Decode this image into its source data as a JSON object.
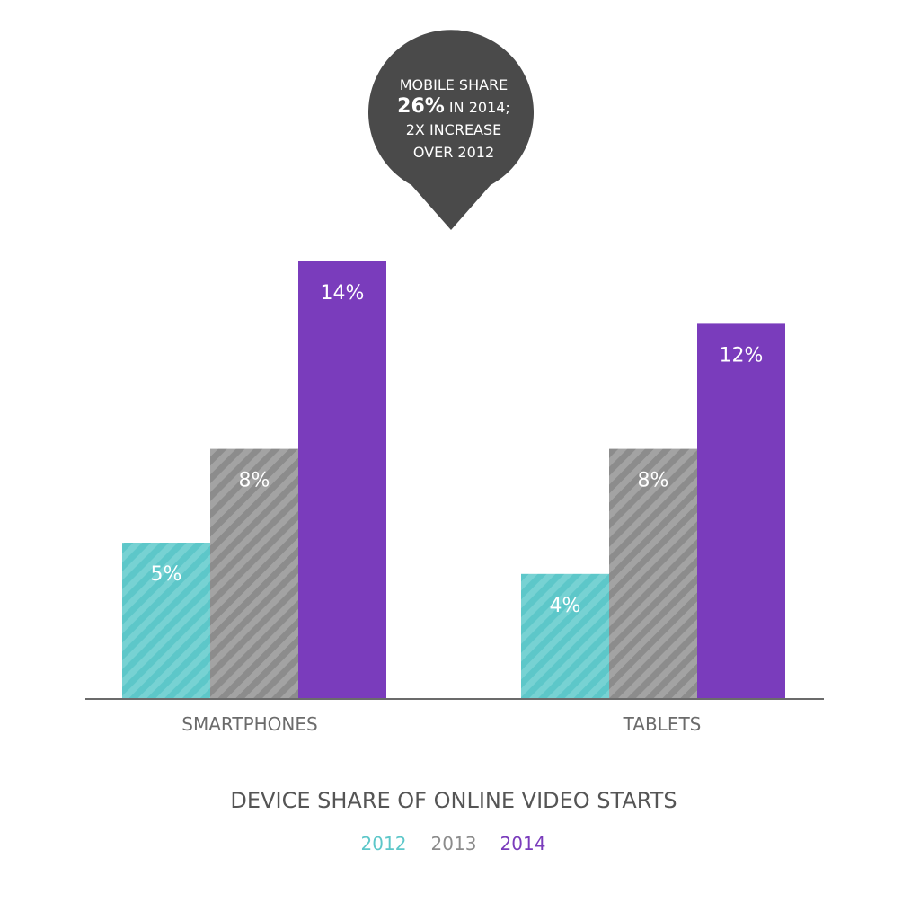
{
  "chart_data": {
    "type": "bar",
    "title": "DEVICE SHARE OF ONLINE VIDEO STARTS",
    "categories": [
      "SMARTPHONES",
      "TABLETS"
    ],
    "series": [
      {
        "name": "2012",
        "values": [
          5,
          4
        ],
        "labels": [
          "5%",
          "4%"
        ],
        "color": "#5dc7c9",
        "pattern": "striped"
      },
      {
        "name": "2013",
        "values": [
          8,
          8
        ],
        "labels": [
          "8%",
          "8%"
        ],
        "color": "#8c8c8c",
        "pattern": "striped"
      },
      {
        "name": "2014",
        "values": [
          14,
          12
        ],
        "labels": [
          "14%",
          "12%"
        ],
        "color": "#7a3cbc",
        "pattern": "solid"
      }
    ],
    "ylim": [
      0,
      14
    ],
    "grid": false,
    "legend": "bottom",
    "xlabel": "",
    "ylabel": ""
  },
  "callout": {
    "line1": "MOBILE SHARE",
    "line2_big": "26%",
    "line2_rest": " IN 2014;",
    "line3": "2X INCREASE",
    "line4": "OVER 2012",
    "color": "#4a4a4a"
  },
  "colors": {
    "axis": "#6b6b6b",
    "category_text": "#6b6b6b",
    "title_text": "#555555"
  }
}
